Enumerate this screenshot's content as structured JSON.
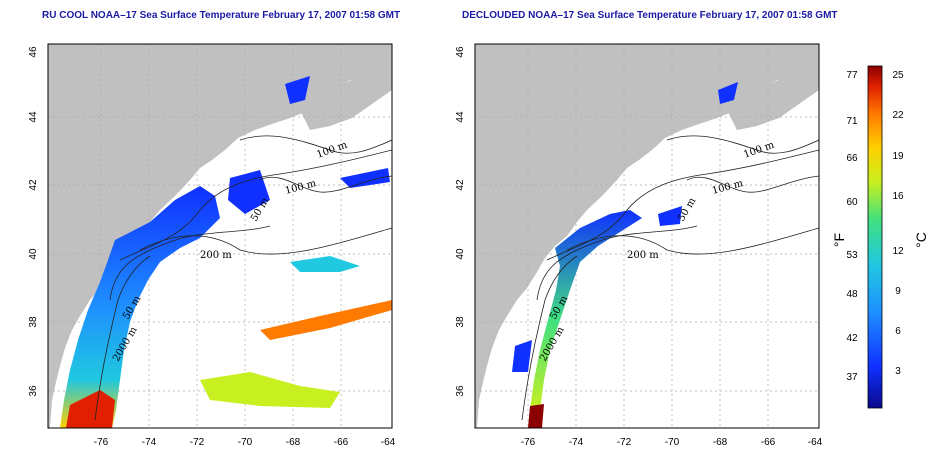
{
  "panels": [
    {
      "title": "RU COOL NOAA–17 Sea Surface Temperature February 17, 2007 01:58 GMT",
      "contour_labels": [
        "100 m",
        "100 m",
        "50 m",
        "200 m",
        "50 m",
        "2000 m"
      ]
    },
    {
      "title": "DECLOUDED NOAA–17 Sea Surface Temperature February 17, 2007 01:58 GMT",
      "contour_labels": [
        "100 m",
        "100 m",
        "50 m",
        "200 m",
        "50 m",
        "2000 m"
      ]
    }
  ],
  "axes": {
    "lat_ticks": [
      "46",
      "44",
      "42",
      "40",
      "38",
      "36"
    ],
    "lon_ticks": [
      "-76",
      "-74",
      "-72",
      "-70",
      "-68",
      "-66",
      "-64"
    ]
  },
  "colorbar": {
    "fahrenheit_ticks": [
      "77",
      "71",
      "66",
      "60",
      "53",
      "48",
      "42",
      "37"
    ],
    "celsius_ticks": [
      "25",
      "22",
      "19",
      "16",
      "12",
      "9",
      "6",
      "3"
    ],
    "fahrenheit_unit": "°F",
    "celsius_unit": "°C",
    "colors": [
      "#0a0a8a",
      "#1030ff",
      "#1e90ff",
      "#20c8e0",
      "#40e080",
      "#c8f020",
      "#ffd000",
      "#ff7a00",
      "#e02000",
      "#8b0000"
    ]
  }
}
